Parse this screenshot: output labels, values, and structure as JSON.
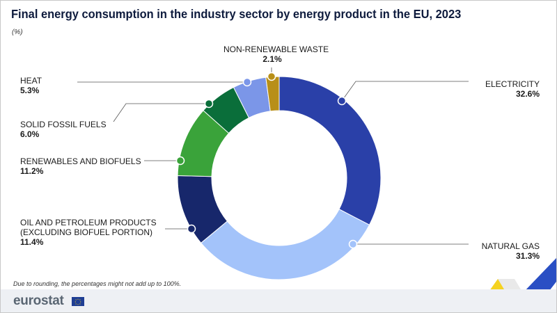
{
  "title": "Final energy consumption in the industry sector by energy product in the EU, 2023",
  "unit": "(%)",
  "footnote": "Due to rounding, the percentages might not add up to 100%.",
  "brand": "eurostat",
  "colors": {
    "title": "#0e1b3d",
    "accent_yellow": "#f5d21f",
    "accent_blue": "#2a4fc4"
  },
  "chart_data": {
    "type": "pie",
    "variant": "donut",
    "slices": [
      {
        "label": "ELECTRICITY",
        "value": 32.6,
        "value_label": "32.6%",
        "color": "#2a40a8"
      },
      {
        "label": "NATURAL GAS",
        "value": 31.3,
        "value_label": "31.3%",
        "color": "#a3c3fa"
      },
      {
        "label": "OIL AND PETROLEUM PRODUCTS (EXCLUDING BIOFUEL PORTION)",
        "label_lines": [
          "OIL AND PETROLEUM PRODUCTS",
          "(EXCLUDING BIOFUEL PORTION)"
        ],
        "value": 11.4,
        "value_label": "11.4%",
        "color": "#17276b"
      },
      {
        "label": "RENEWABLES AND BIOFUELS",
        "value": 11.2,
        "value_label": "11.2%",
        "color": "#3aa33a"
      },
      {
        "label": "SOLID FOSSIL FUELS",
        "value": 6.0,
        "value_label": "6.0%",
        "color": "#0a6e3a"
      },
      {
        "label": "HEAT",
        "value": 5.3,
        "value_label": "5.3%",
        "color": "#7b96e8"
      },
      {
        "label": "NON-RENEWABLE WASTE",
        "value": 2.1,
        "value_label": "2.1%",
        "color": "#b88f18"
      }
    ]
  }
}
